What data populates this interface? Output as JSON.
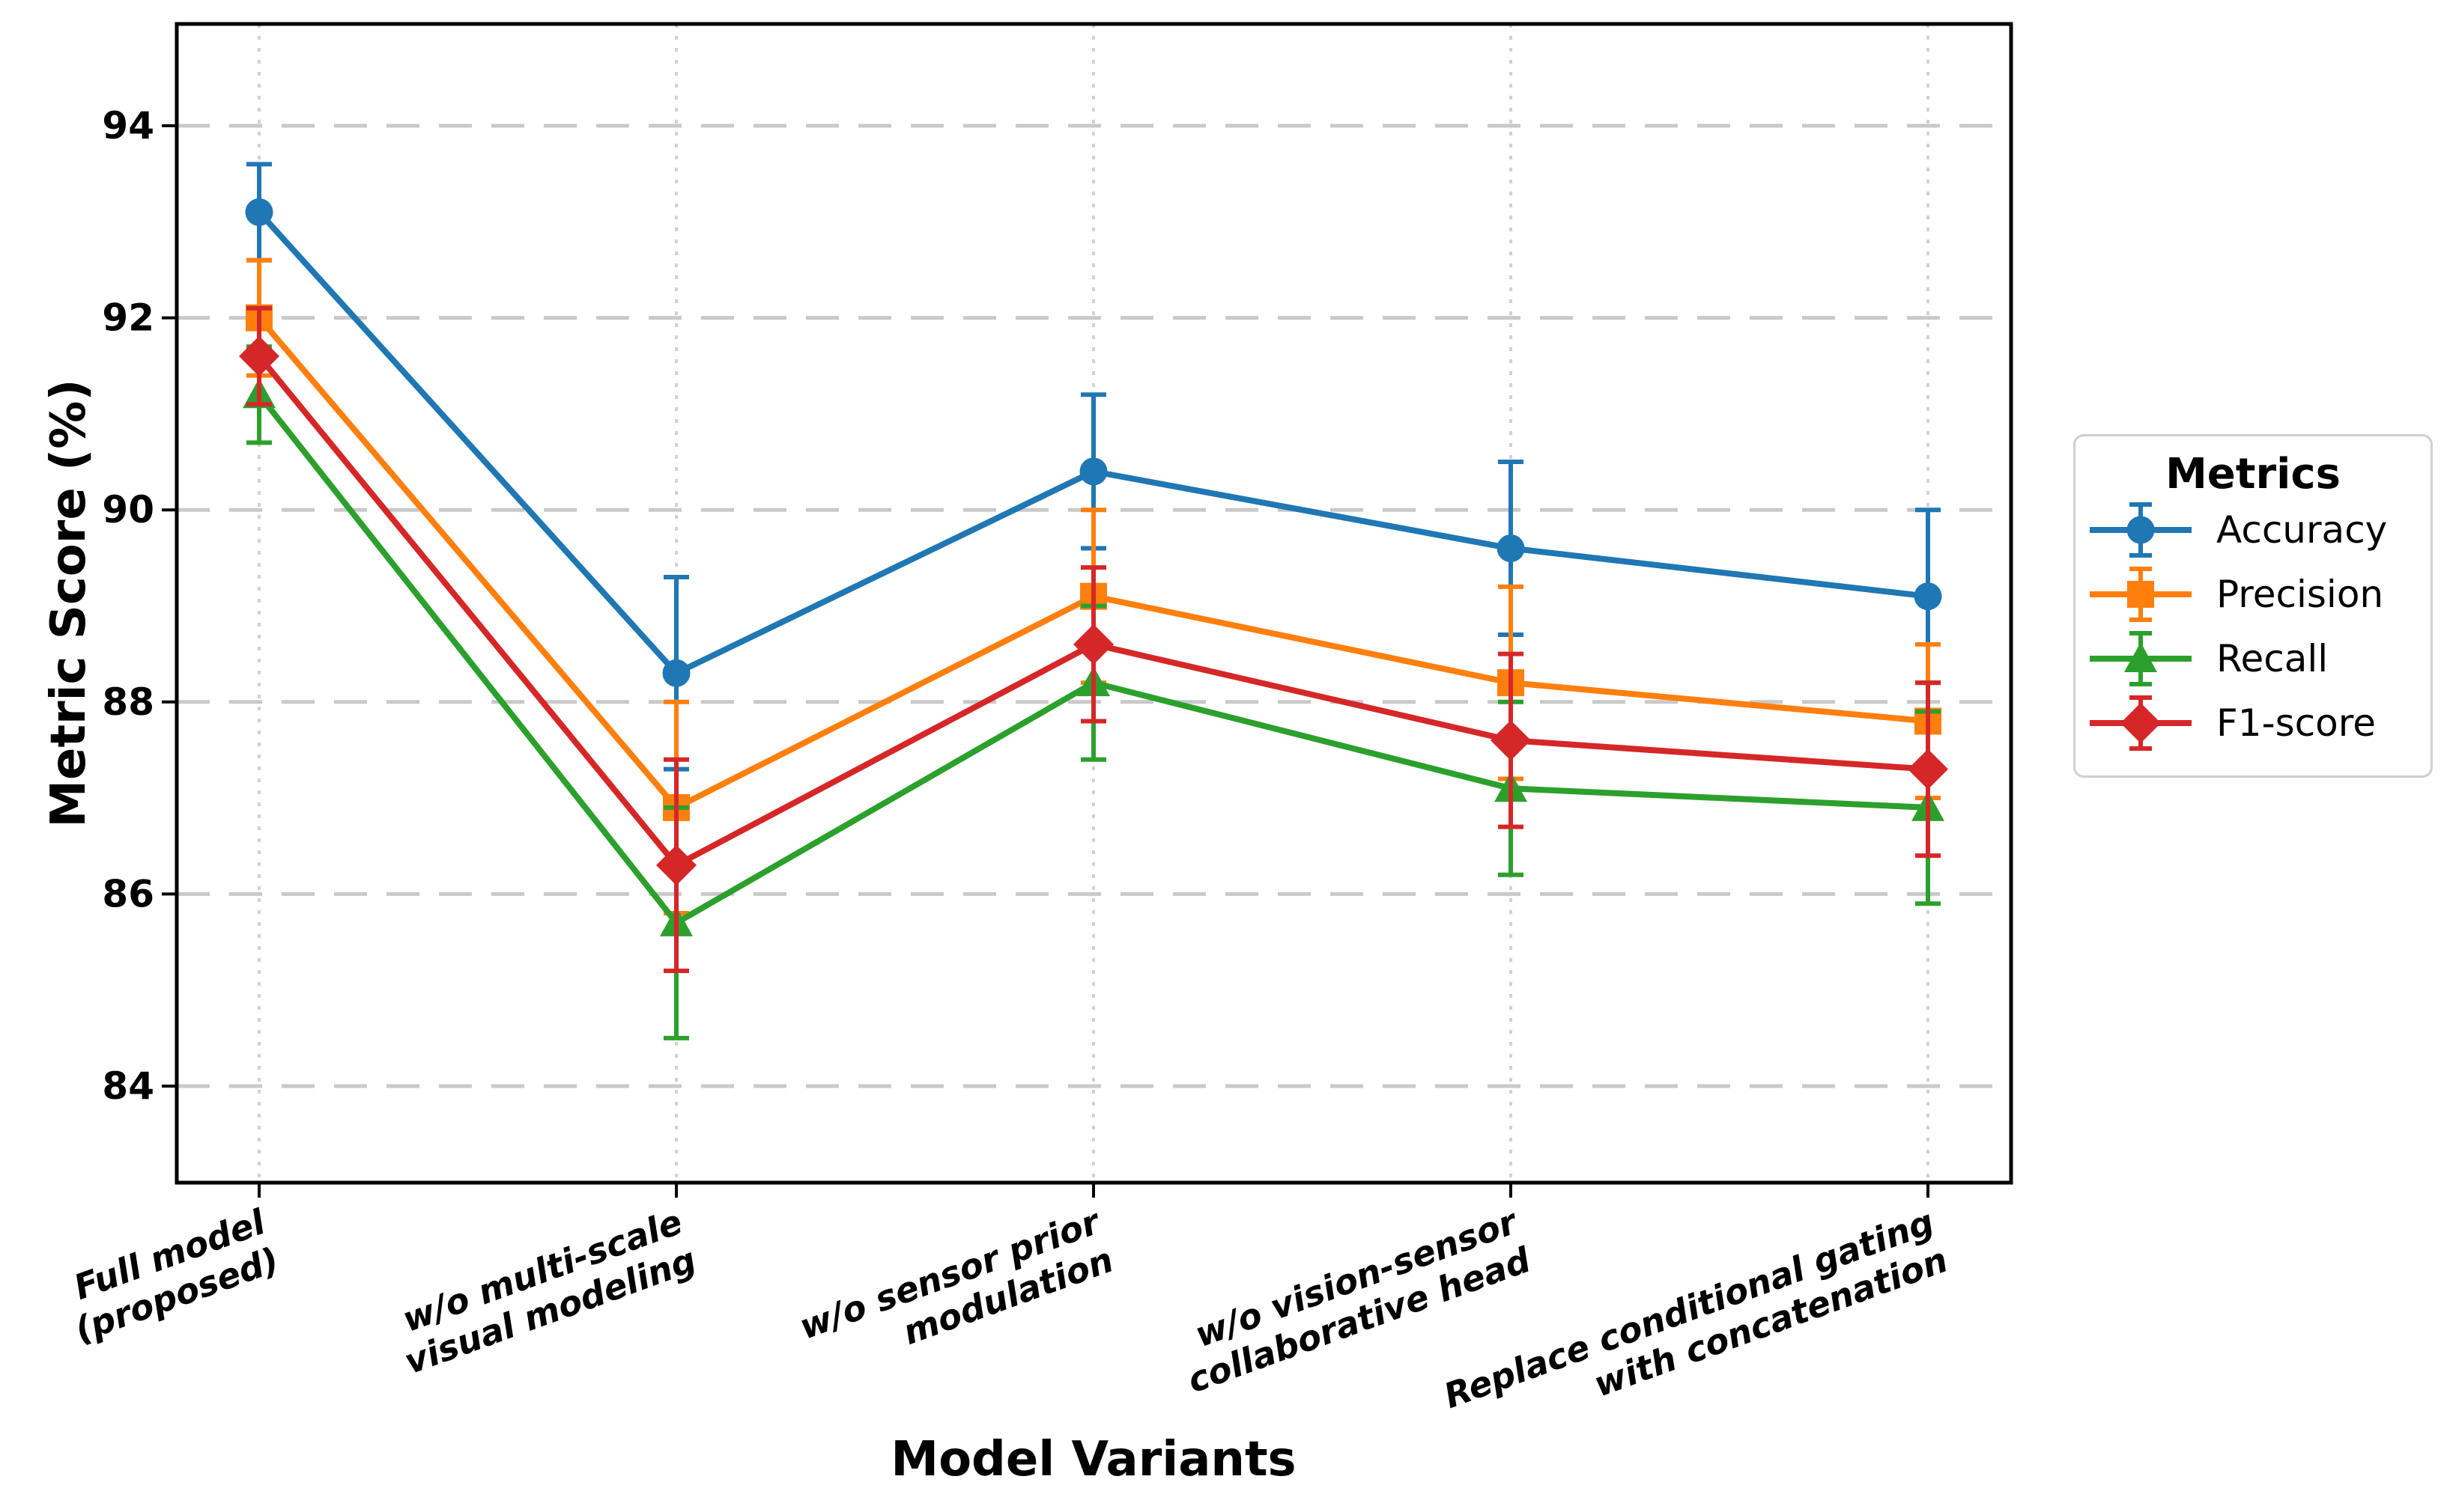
{
  "chart_data": {
    "type": "line",
    "title": "",
    "xlabel": "Model Variants",
    "ylabel": "Metric Score (%)",
    "ylim": [
      83.0,
      95.06
    ],
    "yticks": [
      84,
      86,
      88,
      90,
      92,
      94
    ],
    "grid": {
      "horizontal": "dashed-gray",
      "vertical": "dotted-gray-at-each-category",
      "legend_position": "outside-center-right"
    },
    "xtick_rotation_deg": 20,
    "categories": [
      "Full model\n(proposed)",
      "w/o multi-scale\nvisual modeling",
      "w/o sensor prior\nmodulation",
      "w/o vision-sensor\ncollaborative head",
      "Replace conditional gating\nwith concatenation"
    ],
    "series": [
      {
        "name": "Accuracy",
        "color": "#1f77b4",
        "marker": "circle",
        "values": [
          93.1,
          88.3,
          90.4,
          89.6,
          89.1
        ],
        "errors": [
          0.5,
          1.0,
          0.8,
          0.9,
          0.9
        ]
      },
      {
        "name": "Precision",
        "color": "#ff7f0e",
        "marker": "square",
        "values": [
          92.0,
          86.9,
          89.1,
          88.2,
          87.8
        ],
        "errors": [
          0.6,
          1.1,
          0.9,
          1.0,
          0.8
        ]
      },
      {
        "name": "Recall",
        "color": "#2ca02c",
        "marker": "triangle",
        "values": [
          91.2,
          85.7,
          88.2,
          87.1,
          86.9
        ],
        "errors": [
          0.5,
          1.2,
          0.8,
          0.9,
          1.0
        ]
      },
      {
        "name": "F1-score",
        "color": "#d62728",
        "marker": "diamond",
        "values": [
          91.6,
          86.3,
          88.6,
          87.6,
          87.3
        ],
        "errors": [
          0.5,
          1.1,
          0.8,
          0.9,
          0.9
        ]
      }
    ],
    "legend": {
      "title": "Metrics",
      "position": "outside-right"
    },
    "colors": {
      "spine": "#000000",
      "grid_dash": "#c9c9c9",
      "grid_dot": "#d2d2d2",
      "background": "#ffffff",
      "legend_border": "#d0d0d0"
    }
  }
}
